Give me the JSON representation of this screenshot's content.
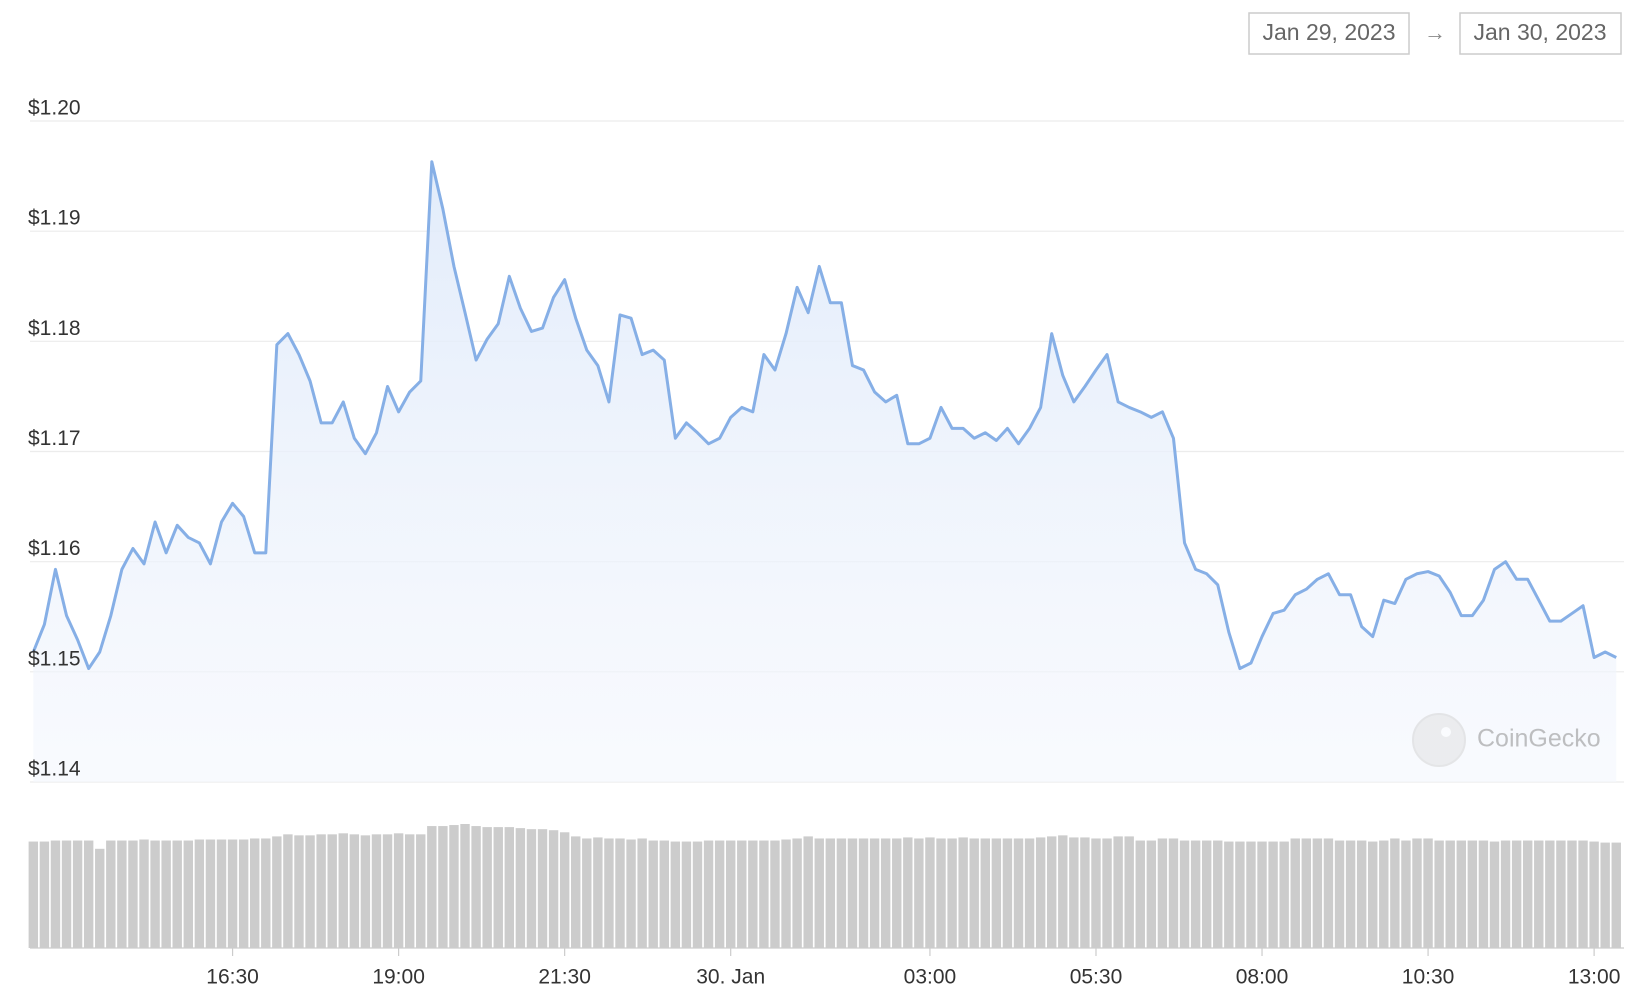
{
  "chart_data": {
    "type": "line",
    "date_range": {
      "from": "Jan 29, 2023",
      "to": "Jan 30, 2023"
    },
    "watermark": "CoinGecko",
    "x": [
      810,
      820,
      830,
      840,
      850,
      860,
      870,
      880,
      890,
      900,
      910,
      920,
      930,
      940,
      950,
      960,
      970,
      980,
      990,
      1000,
      1010,
      1020,
      1030,
      1040,
      1050,
      1060,
      1070,
      1080,
      1090,
      1100,
      1110,
      1120,
      1130,
      1140,
      1150,
      1160,
      1170,
      1180,
      1190,
      1200,
      1210,
      1220,
      1230,
      1240,
      1250,
      1260,
      1270,
      1280,
      1290,
      1300,
      1310,
      1320,
      1330,
      1340,
      1350,
      1360,
      1370,
      1380,
      1390,
      1400,
      1410,
      1420,
      1430,
      1440,
      1450,
      1460,
      1470,
      1480,
      1490,
      1500,
      1510,
      1520,
      1530,
      1540,
      1550,
      1560,
      1570,
      1580,
      1590,
      1600,
      1610,
      1620,
      1630,
      1640,
      1650,
      1660,
      1670,
      1680,
      1690,
      1700,
      1710,
      1720,
      1730,
      1740,
      1750,
      1760,
      1770,
      1780,
      1790,
      1800,
      1810,
      1820,
      1830,
      1840,
      1850,
      1860,
      1870,
      1880,
      1890,
      1900,
      1910,
      1920,
      1930,
      1940,
      1950,
      1960,
      1970,
      1980,
      1990,
      2000,
      2010,
      2020,
      2030,
      2040,
      2050,
      2060,
      2070,
      2080,
      2090,
      2100,
      2110,
      2120,
      2130,
      2140,
      2150,
      2160,
      2170,
      2180,
      2190,
      2200,
      2210,
      2220,
      2230,
      2240
    ],
    "series": [
      {
        "name": "Price",
        "color": "#86afe6",
        "values": [
          1.1518,
          1.1543,
          1.1593,
          1.1551,
          1.1529,
          1.1503,
          1.1518,
          1.1551,
          1.1593,
          1.1612,
          1.1598,
          1.1636,
          1.1608,
          1.1633,
          1.1622,
          1.1617,
          1.1598,
          1.1636,
          1.1653,
          1.1641,
          1.1608,
          1.1608,
          1.1797,
          1.1807,
          1.1788,
          1.1764,
          1.1726,
          1.1726,
          1.1745,
          1.1712,
          1.1698,
          1.1717,
          1.1759,
          1.1736,
          1.1754,
          1.1764,
          1.1963,
          1.192,
          1.1868,
          1.1826,
          1.1783,
          1.1802,
          1.1816,
          1.1859,
          1.183,
          1.1809,
          1.1812,
          1.184,
          1.1856,
          1.1821,
          1.1792,
          1.1778,
          1.1745,
          1.1824,
          1.1821,
          1.1788,
          1.1792,
          1.1783,
          1.1712,
          1.1726,
          1.1717,
          1.1707,
          1.1712,
          1.1731,
          1.174,
          1.1736,
          1.1788,
          1.1774,
          1.1807,
          1.1849,
          1.1826,
          1.1868,
          1.1835,
          1.1835,
          1.1778,
          1.1774,
          1.1754,
          1.1745,
          1.1751,
          1.1707,
          1.1707,
          1.1712,
          1.174,
          1.1721,
          1.1721,
          1.1712,
          1.1717,
          1.171,
          1.1721,
          1.1707,
          1.1721,
          1.174,
          1.1807,
          1.1769,
          1.1745,
          1.1759,
          1.1774,
          1.1788,
          1.1745,
          1.174,
          1.1736,
          1.1731,
          1.1736,
          1.1712,
          1.1617,
          1.1593,
          1.1589,
          1.1579,
          1.1536,
          1.1503,
          1.1508,
          1.1532,
          1.1553,
          1.1556,
          1.157,
          1.1575,
          1.1584,
          1.1589,
          1.157,
          1.157,
          1.1541,
          1.1532,
          1.1565,
          1.1562,
          1.1584,
          1.1589,
          1.1591,
          1.1587,
          1.1572,
          1.1551,
          1.1551,
          1.1565,
          1.1593,
          1.16,
          1.1584,
          1.1584,
          1.1565,
          1.1546,
          1.1546,
          1.1553,
          1.156,
          1.1513,
          1.1518,
          1.1513
        ]
      },
      {
        "name": "Volume",
        "color": "#cccccc",
        "axis": "y2",
        "values": [
          103,
          103,
          104,
          104,
          104,
          104,
          96,
          104,
          104,
          104,
          105,
          104,
          104,
          104,
          104,
          105,
          105,
          105,
          105,
          105,
          106,
          106,
          108,
          110,
          109,
          109,
          110,
          110,
          111,
          110,
          109,
          110,
          110,
          111,
          110,
          110,
          118,
          118,
          119,
          120,
          118,
          117,
          117,
          117,
          116,
          115,
          115,
          114,
          112,
          108,
          106,
          107,
          106,
          106,
          105,
          106,
          104,
          104,
          103,
          103,
          103,
          104,
          104,
          104,
          104,
          104,
          104,
          104,
          105,
          106,
          108,
          106,
          106,
          106,
          106,
          106,
          106,
          106,
          106,
          107,
          106,
          107,
          106,
          106,
          107,
          106,
          106,
          106,
          106,
          106,
          106,
          107,
          108,
          109,
          107,
          107,
          106,
          106,
          108,
          108,
          104,
          104,
          106,
          106,
          104,
          104,
          104,
          104,
          103,
          103,
          103,
          103,
          103,
          103,
          106,
          106,
          106,
          106,
          104,
          104,
          104,
          103,
          104,
          106,
          104,
          106,
          106,
          104,
          104,
          104,
          104,
          104,
          103,
          104,
          104,
          104,
          104,
          104,
          104,
          104,
          104,
          103,
          102,
          102
        ]
      }
    ],
    "xlim": [
      807,
      2247
    ],
    "xticks": [
      {
        "value": 990,
        "label": "16:30"
      },
      {
        "value": 1140,
        "label": "19:00"
      },
      {
        "value": 1290,
        "label": "21:30"
      },
      {
        "value": 1440,
        "label": "30. Jan"
      },
      {
        "value": 1620,
        "label": "03:00"
      },
      {
        "value": 1770,
        "label": "05:30"
      },
      {
        "value": 1920,
        "label": "08:00"
      },
      {
        "value": 2070,
        "label": "10:30"
      },
      {
        "value": 2220,
        "label": "13:00"
      }
    ],
    "ylim": [
      1.14,
      1.2
    ],
    "yticks": [
      {
        "value": 1.14,
        "label": "$1.14"
      },
      {
        "value": 1.15,
        "label": "$1.15"
      },
      {
        "value": 1.16,
        "label": "$1.16"
      },
      {
        "value": 1.17,
        "label": "$1.17"
      },
      {
        "value": 1.18,
        "label": "$1.18"
      },
      {
        "value": 1.19,
        "label": "$1.19"
      },
      {
        "value": 1.2,
        "label": "$1.20"
      }
    ],
    "y2lim": [
      0,
      150
    ],
    "grid": true
  }
}
